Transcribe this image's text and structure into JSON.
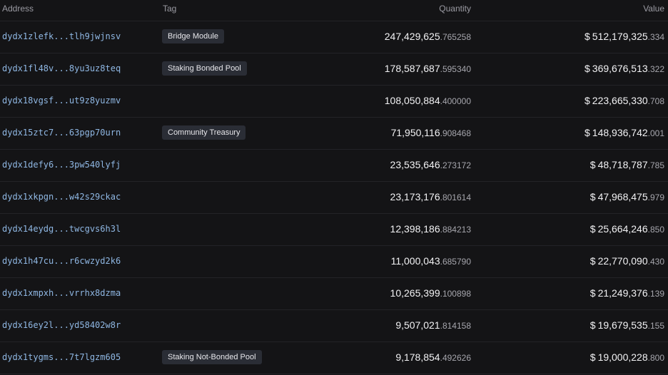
{
  "header": {
    "address": "Address",
    "tag": "Tag",
    "quantity": "Quantity",
    "value": "Value"
  },
  "currency_symbol": "$",
  "rows": [
    {
      "address": "dydx1zlefk...tlh9jwjnsv",
      "tag": "Bridge Module",
      "qty_int": "247,429,625",
      "qty_dec": ".765258",
      "val_int": "512,179,325",
      "val_dec": ".334"
    },
    {
      "address": "dydx1fl48v...8yu3uz8teq",
      "tag": "Staking Bonded Pool",
      "qty_int": "178,587,687",
      "qty_dec": ".595340",
      "val_int": "369,676,513",
      "val_dec": ".322"
    },
    {
      "address": "dydx18vgsf...ut9z8yuzmv",
      "tag": "",
      "qty_int": "108,050,884",
      "qty_dec": ".400000",
      "val_int": "223,665,330",
      "val_dec": ".708"
    },
    {
      "address": "dydx15ztc7...63pgp70urn",
      "tag": "Community Treasury",
      "qty_int": "71,950,116",
      "qty_dec": ".908468",
      "val_int": "148,936,742",
      "val_dec": ".001"
    },
    {
      "address": "dydx1defy6...3pw540lyfj",
      "tag": "",
      "qty_int": "23,535,646",
      "qty_dec": ".273172",
      "val_int": "48,718,787",
      "val_dec": ".785"
    },
    {
      "address": "dydx1xkpgn...w42s29ckac",
      "tag": "",
      "qty_int": "23,173,176",
      "qty_dec": ".801614",
      "val_int": "47,968,475",
      "val_dec": ".979"
    },
    {
      "address": "dydx14eydg...twcgvs6h3l",
      "tag": "",
      "qty_int": "12,398,186",
      "qty_dec": ".884213",
      "val_int": "25,664,246",
      "val_dec": ".850"
    },
    {
      "address": "dydx1h47cu...r6cwzyd2k6",
      "tag": "",
      "qty_int": "11,000,043",
      "qty_dec": ".685790",
      "val_int": "22,770,090",
      "val_dec": ".430"
    },
    {
      "address": "dydx1xmpxh...vrrhx8dzma",
      "tag": "",
      "qty_int": "10,265,399",
      "qty_dec": ".100898",
      "val_int": "21,249,376",
      "val_dec": ".139"
    },
    {
      "address": "dydx16ey2l...yd58402w8r",
      "tag": "",
      "qty_int": "9,507,021",
      "qty_dec": ".814158",
      "val_int": "19,679,535",
      "val_dec": ".155"
    },
    {
      "address": "dydx1tygms...7t7lgzm605",
      "tag": "Staking Not-Bonded Pool",
      "qty_int": "9,178,854",
      "qty_dec": ".492626",
      "val_int": "19,000,228",
      "val_dec": ".800"
    }
  ]
}
